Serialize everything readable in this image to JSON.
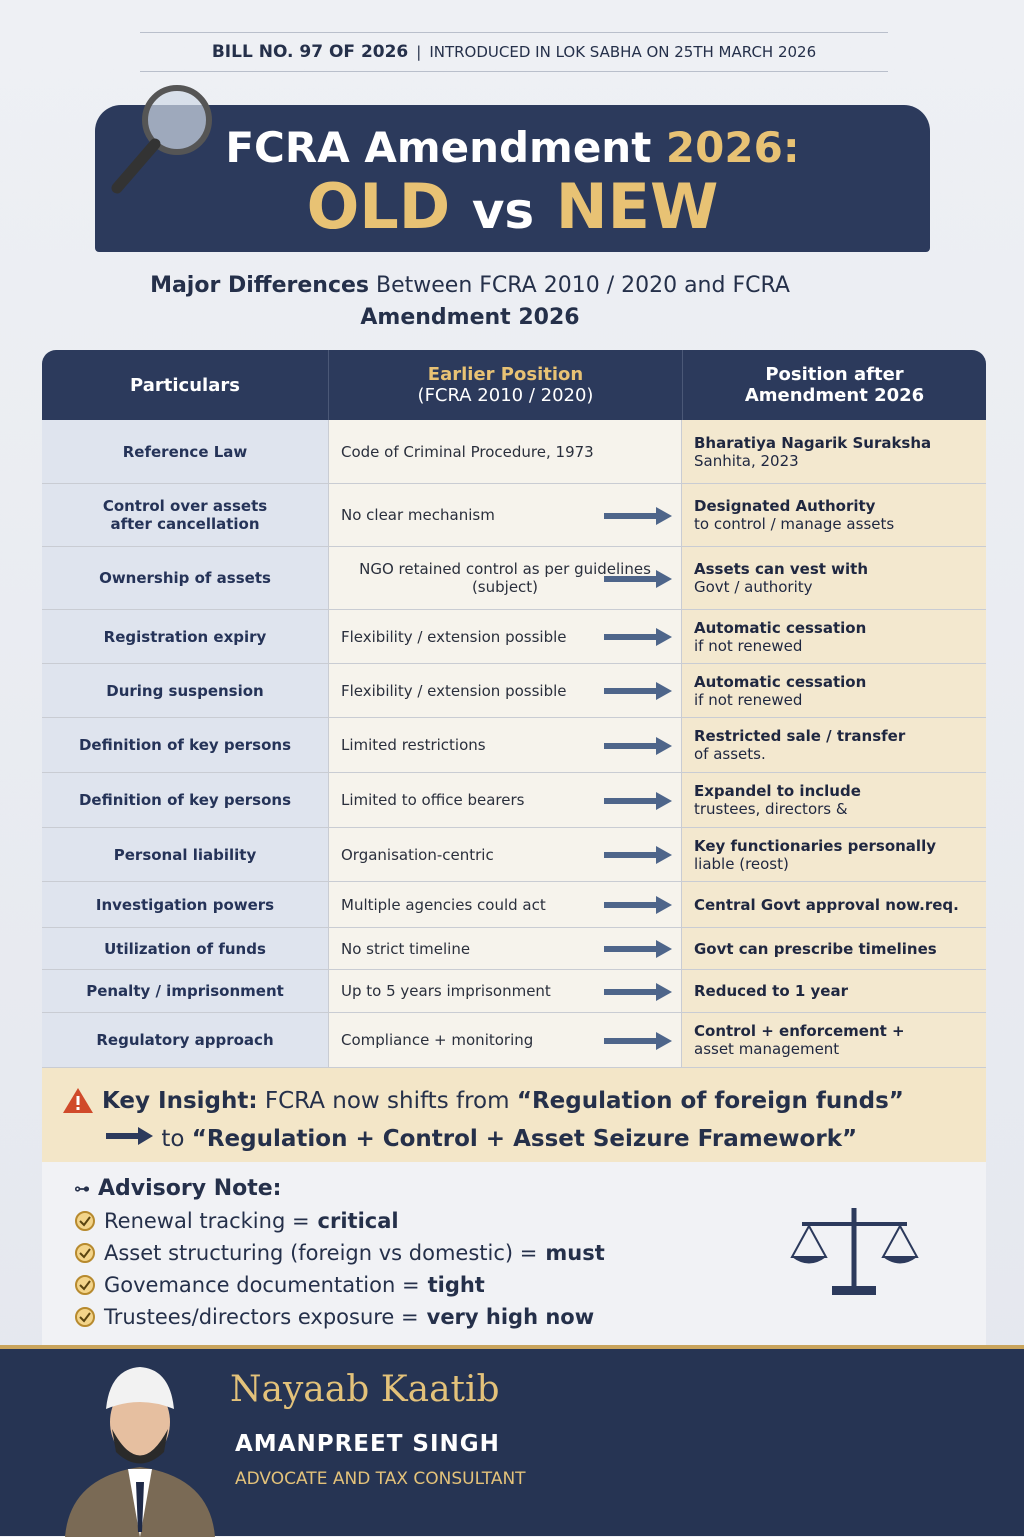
{
  "header": {
    "bill": "BILL NO. 97 OF 2026",
    "separator": "|",
    "introduced": "INTRODUCED IN LOK SABHA ON 25TH MARCH 2026"
  },
  "title": {
    "main": "FCRA Amendment",
    "year": "2026:",
    "old": "OLD",
    "vs": "vs",
    "new": "NEW"
  },
  "subtitle": {
    "bold": "Major Differences",
    "rest": "Between FCRA 2010 / 2020 and FCRA",
    "line2": "Amendment 2026"
  },
  "table": {
    "headers": [
      {
        "title": "Particulars"
      },
      {
        "title": "Earlier Position",
        "sub": "(FCRA 2010 / 2020)"
      },
      {
        "title": "Position after",
        "sub": "Amendment 2026"
      }
    ],
    "rows": [
      [
        [
          "Reference Law"
        ],
        [
          "Code of Criminal Procedure, 1973"
        ],
        [
          "Bharatiya Nagarik Suraksha",
          "Sanhita, 2023"
        ]
      ],
      [
        [
          "Control over assets",
          "after cancellation"
        ],
        [
          "No clear mechanism"
        ],
        [
          "Designated Authority",
          "to control / manage assets"
        ]
      ],
      [
        [
          "Ownership of assets"
        ],
        [
          "NGO retained control as per guidelines",
          "(subject)"
        ],
        [
          "Assets can vest with",
          "Govt / authority"
        ]
      ],
      [
        [
          "Registration expiry"
        ],
        [
          "Flexibility / extension possible"
        ],
        [
          "Automatic cessation",
          "if not renewed"
        ]
      ],
      [
        [
          "During suspension"
        ],
        [
          "Flexibility / extension possible"
        ],
        [
          "Automatic cessation",
          "if not renewed"
        ]
      ],
      [
        [
          "Definition of key persons"
        ],
        [
          "Limited restrictions"
        ],
        [
          "Restricted sale / transfer",
          "of assets."
        ]
      ],
      [
        [
          "Definition of key persons"
        ],
        [
          "Limited to office bearers"
        ],
        [
          "Expandel to include",
          "trustees, directors &"
        ]
      ],
      [
        [
          "Personal liability"
        ],
        [
          "Organisation-centric"
        ],
        [
          "Key functionaries personally",
          "liable (reost)"
        ]
      ],
      [
        [
          "Investigation powers"
        ],
        [
          "Multiple agencies could act"
        ],
        [
          "Central Govt approval now.req."
        ]
      ],
      [
        [
          "Utilization of funds"
        ],
        [
          "No strict timeline"
        ],
        [
          "Govt can prescribe timelines"
        ]
      ],
      [
        [
          "Penalty / imprisonment"
        ],
        [
          "Up to 5 years imprisonment"
        ],
        [
          "Reduced to 1 year"
        ]
      ],
      [
        [
          "Regulatory approach"
        ],
        [
          "Compliance + monitoring"
        ],
        [
          "Control + enforcement +",
          "asset management"
        ]
      ]
    ]
  },
  "insight": {
    "label": "Key Insight:",
    "text": "FCRA now shifts from",
    "from": "“Regulation of foreign funds”",
    "to": "to",
    "target": "“Regulation + Control + Asset Seizure Framework”"
  },
  "advisory": {
    "title": "Advisory Note:",
    "items": [
      {
        "text": "Renewal tracking =",
        "emphasis": "critical"
      },
      {
        "text": "Asset structuring (foreign vs domestic) =",
        "emphasis": "must"
      },
      {
        "text": "Govemance documentation =",
        "emphasis": "tight"
      },
      {
        "text": "Trustees/directors exposure =",
        "emphasis": "very high now"
      }
    ]
  },
  "footer": {
    "brand": "Nayaab Kaatib",
    "name": "AMANPREET SINGH",
    "role": "ADVOCATE AND TAX CONSULTANT"
  }
}
